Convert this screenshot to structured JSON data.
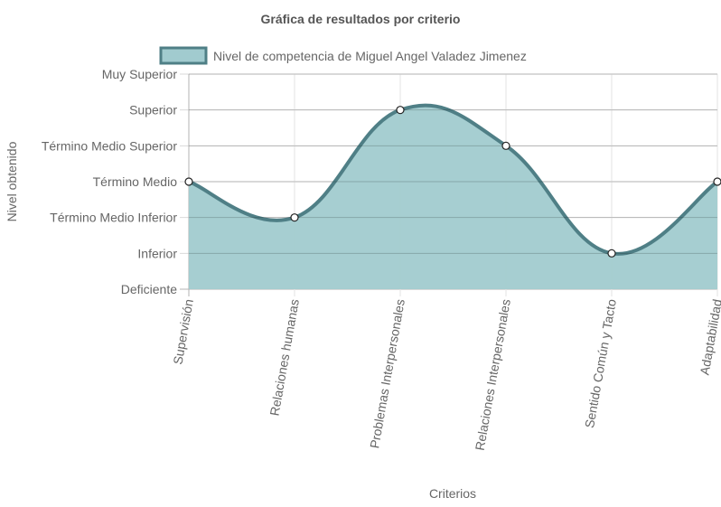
{
  "chart_data": {
    "type": "area",
    "title": "Gráfica de resultados por criterio",
    "xlabel": "Criterios",
    "ylabel": "Nivel obtenido",
    "categories": [
      "Supervisión",
      "Relaciones humanas",
      "Problemas Interpersonales",
      "Relaciones Interpersonales",
      "Sentido Común y Tacto",
      "Adaptabilidad"
    ],
    "y_levels": [
      "Deficiente",
      "Inferior",
      "Término Medio Inferior",
      "Término Medio",
      "Término Medio Superior",
      "Superior",
      "Muy Superior"
    ],
    "ylim": [
      0,
      6
    ],
    "grid": true,
    "legend_position": "top",
    "series": [
      {
        "name": "Nivel de competencia de Miguel Angel Valadez Jimenez",
        "values": [
          3,
          2,
          5,
          4,
          1,
          3
        ],
        "color": "#4f7f86",
        "fill": "#a1cbcf"
      }
    ]
  }
}
